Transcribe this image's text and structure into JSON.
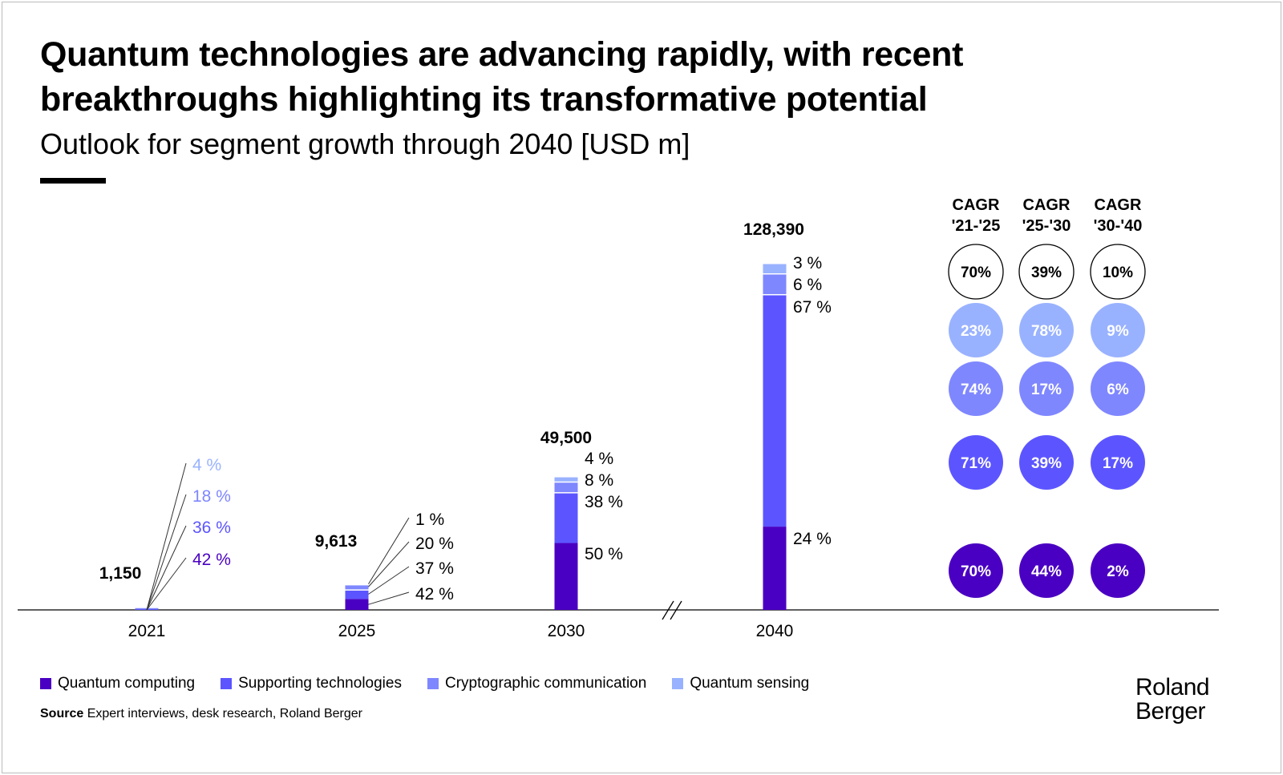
{
  "title": "Quantum technologies are advancing rapidly, with recent breakthroughs highlighting its transformative potential",
  "subtitle": "Outlook for segment growth through 2040 [USD m]",
  "colors": {
    "Quantum computing": "#4A00C2",
    "Supporting technologies": "#5C55FF",
    "Cryptographic communication": "#7F87FF",
    "Quantum sensing": "#99B2FF"
  },
  "chart_data": {
    "type": "bar",
    "stacked": true,
    "categories": [
      "2021",
      "2025",
      "2030",
      "2040"
    ],
    "totals": [
      1150,
      9613,
      49500,
      128390
    ],
    "totals_labels": [
      "1,150",
      "9,613",
      "49,500",
      "128,390"
    ],
    "axis_break_between": [
      "2030",
      "2040"
    ],
    "series": [
      {
        "name": "Quantum computing",
        "shares_pct": [
          42,
          42,
          50,
          24
        ]
      },
      {
        "name": "Supporting technologies",
        "shares_pct": [
          36,
          37,
          38,
          67
        ]
      },
      {
        "name": "Cryptographic communication",
        "shares_pct": [
          18,
          20,
          8,
          6
        ]
      },
      {
        "name": "Quantum sensing",
        "shares_pct": [
          4,
          1,
          4,
          3
        ]
      }
    ],
    "cagr": {
      "headers": [
        [
          "CAGR",
          "'21-'25"
        ],
        [
          "CAGR",
          "'25-'30"
        ],
        [
          "CAGR",
          "'30-'40"
        ]
      ],
      "total": [
        "70",
        "39",
        "10"
      ],
      "rows": [
        {
          "series": "Quantum sensing",
          "values": [
            "23",
            "78",
            "9"
          ]
        },
        {
          "series": "Cryptographic communication",
          "values": [
            "74",
            "17",
            "6"
          ]
        },
        {
          "series": "Supporting technologies",
          "values": [
            "71",
            "39",
            "17"
          ]
        },
        {
          "series": "Quantum computing",
          "values": [
            "70",
            "44",
            "2"
          ]
        }
      ]
    },
    "legend_position": "bottom-left"
  },
  "legend": [
    "Quantum computing",
    "Supporting technologies",
    "Cryptographic communication",
    "Quantum sensing"
  ],
  "source_label": "Source",
  "source_text": "Expert interviews, desk research, Roland Berger",
  "logo": [
    "Roland",
    "Berger"
  ]
}
